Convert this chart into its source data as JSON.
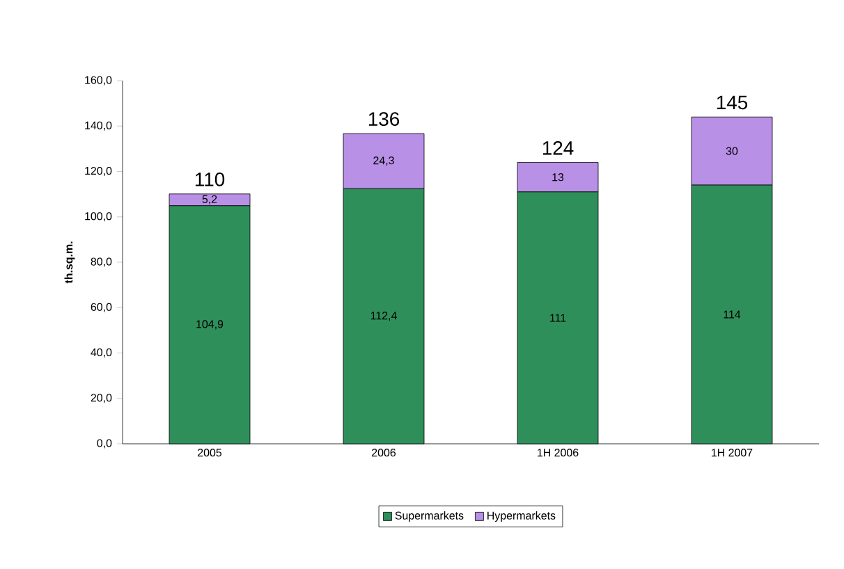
{
  "chart_data": {
    "type": "bar",
    "stacked": true,
    "ylabel": "th.sq.m.",
    "categories": [
      "2005",
      "2006",
      "1H 2006",
      "1H 2007"
    ],
    "series": [
      {
        "name": "Supermarkets",
        "color": "#2f8f5b",
        "values": [
          104.9,
          112.4,
          111,
          114
        ],
        "value_labels": [
          "104,9",
          "112,4",
          "111",
          "114"
        ]
      },
      {
        "name": "Hypermarkets",
        "color": "#b890e6",
        "values": [
          5.2,
          24.3,
          13,
          30
        ],
        "value_labels": [
          "5,2",
          "24,3",
          "13",
          "30"
        ]
      }
    ],
    "totals": [
      "110",
      "136",
      "124",
      "145"
    ],
    "ylim": [
      0,
      160
    ],
    "yticks": [
      {
        "value": 0,
        "label": "0,0"
      },
      {
        "value": 20,
        "label": "20,0"
      },
      {
        "value": 40,
        "label": "40,0"
      },
      {
        "value": 60,
        "label": "60,0"
      },
      {
        "value": 80,
        "label": "80,0"
      },
      {
        "value": 100,
        "label": "100,0"
      },
      {
        "value": 120,
        "label": "120,0"
      },
      {
        "value": 140,
        "label": "140,0"
      },
      {
        "value": 160,
        "label": "160,0"
      }
    ],
    "legend": "bottom"
  }
}
